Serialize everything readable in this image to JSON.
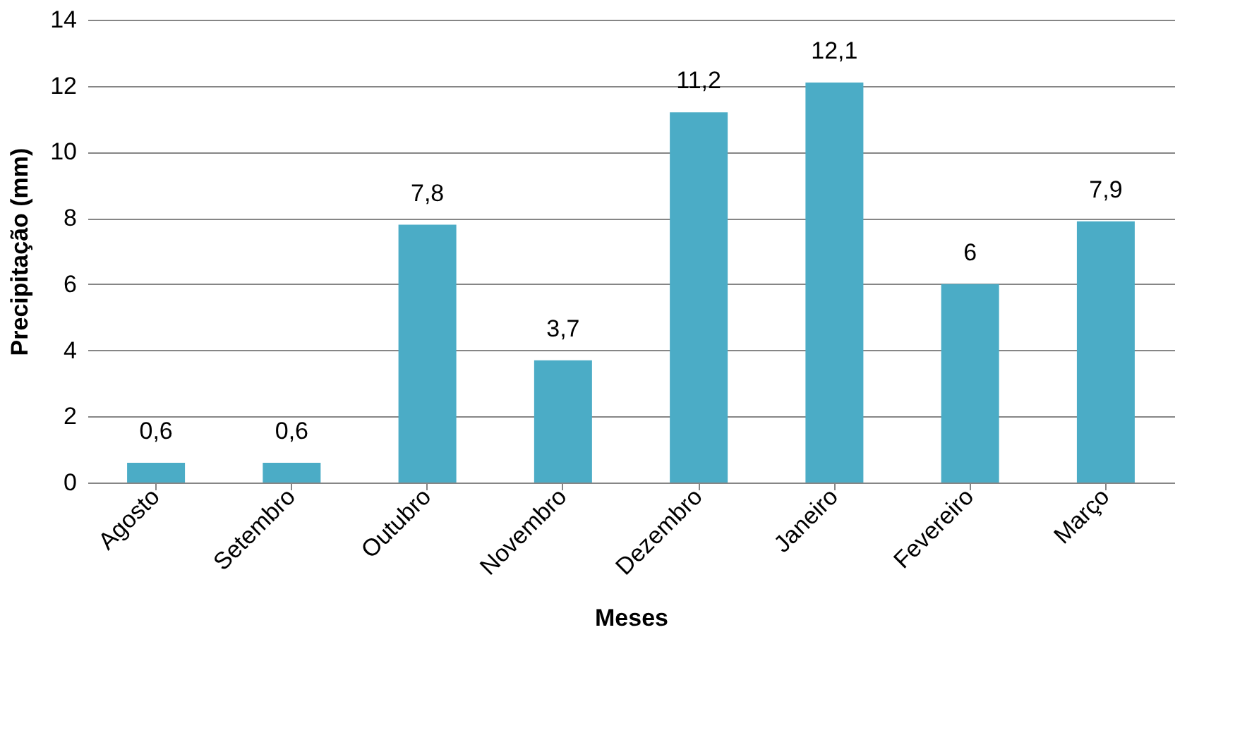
{
  "chart_data": {
    "type": "bar",
    "categories": [
      "Agosto",
      "Setembro",
      "Outubro",
      "Novembro",
      "Dezembro",
      "Janeiro",
      "Fevereiro",
      "Março"
    ],
    "values": [
      0.6,
      0.6,
      7.8,
      3.7,
      11.2,
      12.1,
      6,
      7.9
    ],
    "value_labels": [
      "0,6",
      "0,6",
      "7,8",
      "3,7",
      "11,2",
      "12,1",
      "6",
      "7,9"
    ],
    "color": "#4bacc6",
    "xlabel": "Meses",
    "ylabel": "Precipitação (mm)",
    "ylim": [
      0,
      14
    ],
    "yticks": [
      0,
      2,
      4,
      6,
      8,
      10,
      12,
      14
    ],
    "grid": "y"
  }
}
